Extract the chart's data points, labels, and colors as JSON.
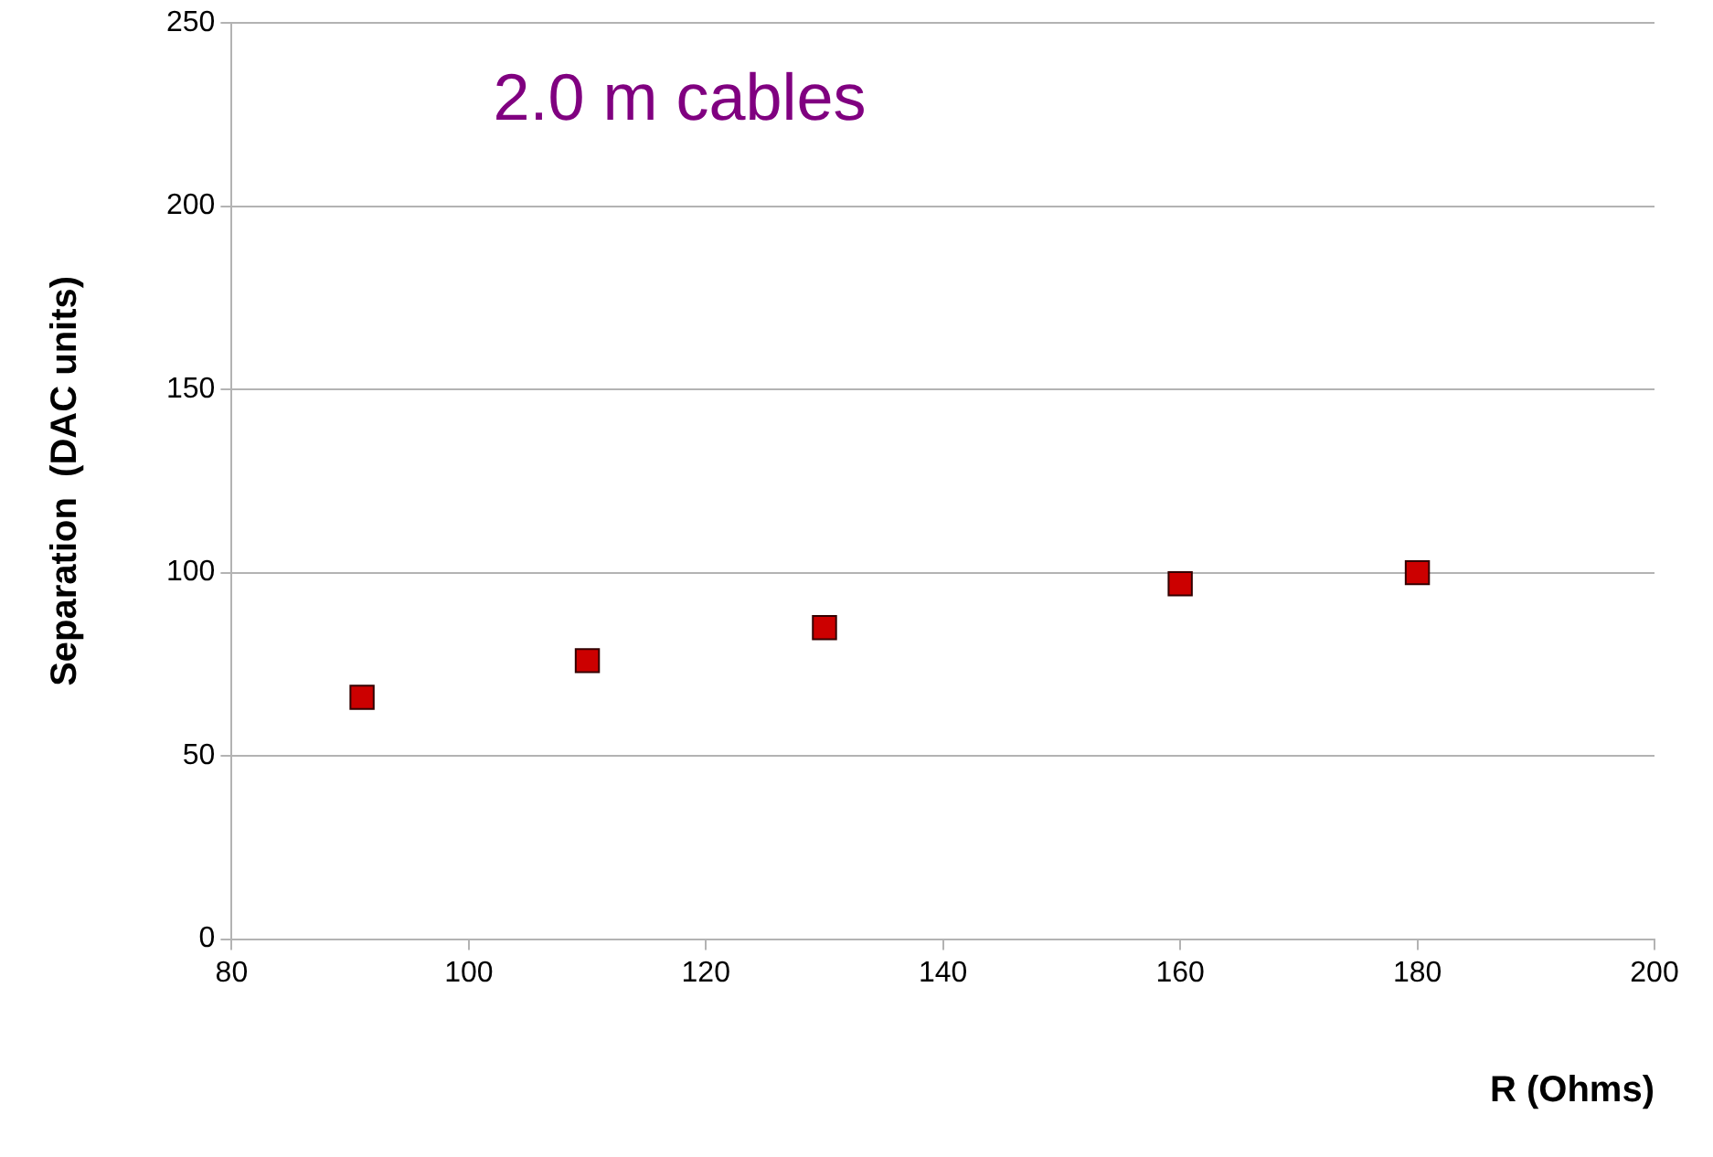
{
  "chart_data": {
    "type": "scatter",
    "xlabel": "R (Ohms)",
    "ylabel": "Separation  (DAC units)",
    "annotations": [
      "2.0 m cables"
    ],
    "x": [
      91,
      110,
      130,
      160,
      180
    ],
    "series": [
      {
        "color": "#cc0000",
        "values": [
          66,
          76,
          85,
          97,
          100
        ]
      }
    ],
    "xlim": [
      80,
      200
    ],
    "xticks": [
      80,
      100,
      120,
      140,
      160,
      180,
      200
    ],
    "ylim": [
      0,
      250
    ],
    "yticks": [
      0,
      50,
      100,
      150,
      200,
      250
    ],
    "grid": "y",
    "legend": false,
    "marker": "square"
  }
}
